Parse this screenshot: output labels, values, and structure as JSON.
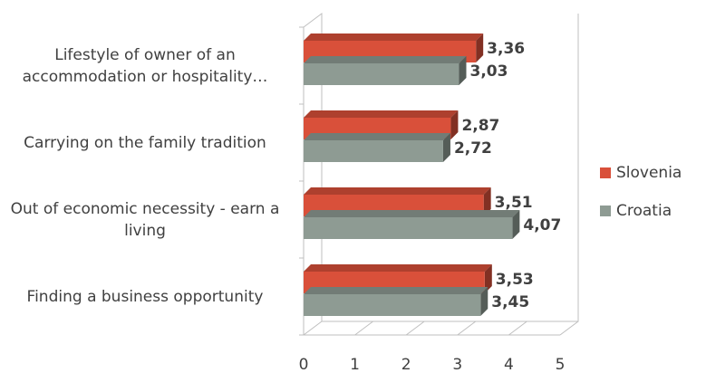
{
  "chart_data": {
    "type": "bar",
    "orientation": "horizontal",
    "categories": [
      "Lifestyle of owner of an accommodation or hospitality…",
      "Carrying on the family tradition",
      "Out of economic necessity - earn a living",
      "Finding a business opportunity"
    ],
    "series": [
      {
        "name": "Slovenia",
        "color": "#d9503a",
        "values": [
          3.36,
          2.87,
          3.51,
          3.53
        ],
        "value_labels": [
          "3,36",
          "2,87",
          "3,51",
          "3,53"
        ]
      },
      {
        "name": "Croatia",
        "color": "#8e9b93",
        "values": [
          3.03,
          2.72,
          4.07,
          3.45
        ],
        "value_labels": [
          "3,03",
          "2,72",
          "4,07",
          "3,45"
        ]
      }
    ],
    "xlim": [
      0,
      5
    ],
    "xticks": [
      0,
      1,
      2,
      3,
      4,
      5
    ],
    "legend": "right"
  }
}
